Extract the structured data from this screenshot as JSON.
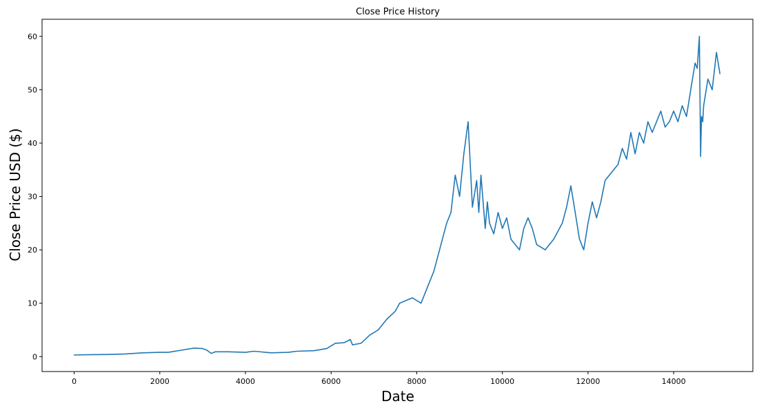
{
  "chart_data": {
    "type": "line",
    "title": "Close Price History",
    "xlabel": "Date",
    "ylabel": "Close Price USD ($)",
    "xlim": [
      -750,
      15850
    ],
    "ylim": [
      -2.8,
      63.2
    ],
    "xticks": [
      0,
      2000,
      4000,
      6000,
      8000,
      10000,
      12000,
      14000
    ],
    "xtick_labels": [
      "0",
      "2000",
      "4000",
      "6000",
      "8000",
      "10000",
      "12000",
      "14000"
    ],
    "yticks": [
      0,
      10,
      20,
      30,
      40,
      50,
      60
    ],
    "ytick_labels": [
      "0",
      "10",
      "20",
      "30",
      "40",
      "50",
      "60"
    ],
    "grid": false,
    "legend": "none",
    "series_color": "#1f77b4",
    "series": [
      {
        "x": [
          0,
          300,
          800,
          1200,
          1600,
          2000,
          2200,
          2500,
          2800,
          3000,
          3100,
          3200,
          3300,
          3600,
          4000,
          4200,
          4600,
          5000,
          5200,
          5600,
          5900,
          6100,
          6300,
          6450,
          6500,
          6700,
          6900,
          7100,
          7300,
          7500,
          7600,
          7750,
          7900,
          8100,
          8200,
          8400,
          8600,
          8700,
          8800,
          8900,
          9000,
          9100,
          9150,
          9200,
          9250,
          9300,
          9400,
          9450,
          9500,
          9600,
          9650,
          9700,
          9800,
          9900,
          10000,
          10100,
          10200,
          10300,
          10400,
          10500,
          10600,
          10700,
          10800,
          11000,
          11200,
          11400,
          11500,
          11600,
          11700,
          11800,
          11900,
          12000,
          12100,
          12200,
          12300,
          12400,
          12500,
          12700,
          12800,
          12900,
          13000,
          13100,
          13200,
          13300,
          13400,
          13500,
          13600,
          13700,
          13800,
          13900,
          14000,
          14100,
          14200,
          14300,
          14400,
          14500,
          14550,
          14600,
          14630,
          14650,
          14680,
          14700,
          14800,
          14900,
          15000,
          15080
        ],
        "y": [
          0.3,
          0.35,
          0.4,
          0.5,
          0.7,
          0.8,
          0.8,
          1.2,
          1.6,
          1.5,
          1.2,
          0.6,
          0.9,
          0.9,
          0.8,
          1.0,
          0.7,
          0.8,
          1.0,
          1.1,
          1.5,
          2.5,
          2.6,
          3.2,
          2.2,
          2.5,
          4.0,
          5.0,
          7.0,
          8.5,
          10.0,
          10.5,
          11.0,
          10.0,
          12.0,
          16.0,
          22.0,
          25.0,
          27.0,
          34.0,
          30.0,
          38.0,
          41.0,
          44.0,
          36.0,
          28.0,
          33.0,
          27.0,
          34.0,
          24.0,
          29.0,
          25.0,
          23.0,
          27.0,
          24.0,
          26.0,
          22.0,
          21.0,
          20.0,
          24.0,
          26.0,
          24.0,
          21.0,
          20.0,
          22.0,
          25.0,
          28.0,
          32.0,
          27.0,
          22.0,
          20.0,
          25.0,
          29.0,
          26.0,
          29.0,
          33.0,
          34.0,
          36.0,
          39.0,
          37.0,
          42.0,
          38.0,
          42.0,
          40.0,
          44.0,
          42.0,
          44.0,
          46.0,
          43.0,
          44.0,
          46.0,
          44.0,
          47.0,
          45.0,
          50.0,
          55.0,
          54.0,
          60.0,
          37.5,
          45.0,
          44.0,
          47.0,
          52.0,
          50.0,
          57.0,
          53.0
        ]
      }
    ]
  }
}
